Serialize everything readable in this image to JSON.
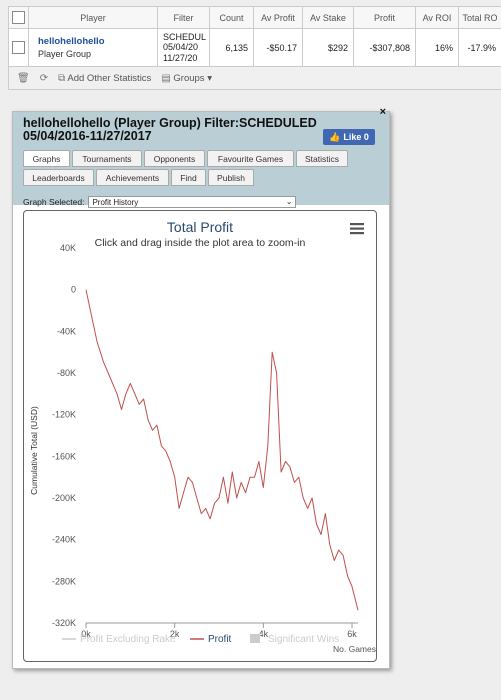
{
  "table": {
    "headers": [
      "Player",
      "Filter",
      "Count",
      "Av Profit",
      "Av Stake",
      "Profit",
      "Av ROI",
      "Total RO"
    ],
    "row": {
      "player_name": "hellohellohello",
      "player_sub": "Player Group",
      "filter_lines": [
        "SCHEDUL",
        "05/04/20",
        "11/27/20"
      ],
      "count": "6,135",
      "av_profit": "-$50.17",
      "av_stake": "$292",
      "profit": "-$307,808",
      "av_roi": "16%",
      "total_roi": "-17.9%"
    }
  },
  "toolbar": {
    "delete_icon": "trash-icon",
    "refresh_icon": "refresh-icon",
    "add_stats_label": "Add Other Statistics",
    "groups_label": "Groups"
  },
  "panel": {
    "title": "hellohellohello (Player Group) Filter:SCHEDULED 05/04/2016-11/27/2017",
    "close_label": "×",
    "like_label": "Like 0",
    "tabs_row1": [
      "Graphs",
      "Tournaments",
      "Opponents",
      "Favourite Games",
      "Statistics"
    ],
    "tabs_row2": [
      "Leaderboards",
      "Achievements",
      "Find",
      "Publish"
    ],
    "active_tab": "Graphs",
    "graph_selected_label": "Graph Selected:",
    "graph_selected_value": "Profit History"
  },
  "colors": {
    "profit_line": "#c0504d",
    "legend_grey": "#cccccc",
    "header_bg": "#b9cfd5",
    "like_bg": "#4267b2"
  },
  "chart_data": {
    "type": "line",
    "title": "Total Profit",
    "subtitle": "Click and drag inside the plot area to zoom-in",
    "xlabel": "No. Games",
    "ylabel": "Cumulative Total (USD)",
    "xlim": [
      0,
      6135
    ],
    "ylim": [
      -320000,
      40000
    ],
    "x_ticks": [
      "0k",
      "2k",
      "4k",
      "6k"
    ],
    "y_ticks": [
      "40K",
      "0",
      "-40K",
      "-80K",
      "-120K",
      "-160K",
      "-200K",
      "-240K",
      "-280K",
      "-320K"
    ],
    "legend": [
      "Profit Excluding Rake",
      "Profit",
      "Significant Wins"
    ],
    "series": [
      {
        "name": "Profit",
        "x": [
          0,
          100,
          250,
          400,
          500,
          600,
          700,
          800,
          900,
          1000,
          1100,
          1200,
          1300,
          1400,
          1500,
          1600,
          1700,
          1800,
          1900,
          2000,
          2100,
          2200,
          2300,
          2400,
          2500,
          2600,
          2700,
          2800,
          2900,
          3000,
          3100,
          3200,
          3300,
          3400,
          3500,
          3600,
          3700,
          3800,
          3900,
          4000,
          4100,
          4200,
          4300,
          4400,
          4500,
          4600,
          4700,
          4800,
          4900,
          5000,
          5100,
          5200,
          5300,
          5400,
          5500,
          5600,
          5700,
          5800,
          5900,
          6000,
          6135
        ],
        "y": [
          0,
          -20000,
          -50000,
          -70000,
          -80000,
          -90000,
          -100000,
          -115000,
          -100000,
          -90000,
          -100000,
          -110000,
          -105000,
          -125000,
          -135000,
          -130000,
          -150000,
          -155000,
          -165000,
          -180000,
          -210000,
          -195000,
          -180000,
          -185000,
          -200000,
          -215000,
          -210000,
          -220000,
          -205000,
          -200000,
          -180000,
          -205000,
          -175000,
          -200000,
          -185000,
          -195000,
          -180000,
          -180000,
          -165000,
          -190000,
          -150000,
          -60000,
          -80000,
          -175000,
          -165000,
          -170000,
          -185000,
          -180000,
          -200000,
          -210000,
          -200000,
          -225000,
          -235000,
          -215000,
          -245000,
          -260000,
          -250000,
          -255000,
          -275000,
          -285000,
          -307808
        ]
      }
    ]
  }
}
